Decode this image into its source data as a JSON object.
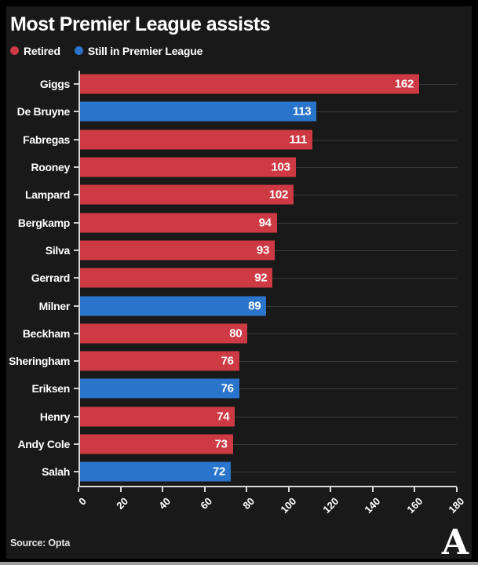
{
  "title": "Most Premier League assists",
  "legend": [
    {
      "label": "Retired",
      "color": "#ce3a44"
    },
    {
      "label": "Still in Premier League",
      "color": "#2a74cc"
    }
  ],
  "source": "Source: Opta",
  "logo_glyph": "A",
  "colors": {
    "frame": "#000000",
    "background": "#191919",
    "bar_retired": "#ce3a44",
    "bar_active": "#2a74cc",
    "grid": "#3b3b3b",
    "axis": "#d8d8d8",
    "text": "#ffffff",
    "bottom_strip": "#9e9e9e"
  },
  "chart_data": {
    "type": "bar",
    "orientation": "horizontal",
    "title": "Most Premier League assists",
    "xlabel": "",
    "ylabel": "",
    "xlim": [
      0,
      180
    ],
    "xticks": [
      0,
      20,
      40,
      60,
      80,
      100,
      120,
      140,
      160,
      180
    ],
    "grid": true,
    "legend_position": "top-left",
    "legend_entries": [
      "Retired",
      "Still in Premier League"
    ],
    "bars": [
      {
        "label": "Giggs",
        "value": 162,
        "group": "Retired"
      },
      {
        "label": "De Bruyne",
        "value": 113,
        "group": "Still in Premier League"
      },
      {
        "label": "Fabregas",
        "value": 111,
        "group": "Retired"
      },
      {
        "label": "Rooney",
        "value": 103,
        "group": "Retired"
      },
      {
        "label": "Lampard",
        "value": 102,
        "group": "Retired"
      },
      {
        "label": "Bergkamp",
        "value": 94,
        "group": "Retired"
      },
      {
        "label": "Silva",
        "value": 93,
        "group": "Retired"
      },
      {
        "label": "Gerrard",
        "value": 92,
        "group": "Retired"
      },
      {
        "label": "Milner",
        "value": 89,
        "group": "Still in Premier League"
      },
      {
        "label": "Beckham",
        "value": 80,
        "group": "Retired"
      },
      {
        "label": "Sheringham",
        "value": 76,
        "group": "Retired"
      },
      {
        "label": "Eriksen",
        "value": 76,
        "group": "Still in Premier League"
      },
      {
        "label": "Henry",
        "value": 74,
        "group": "Retired"
      },
      {
        "label": "Andy Cole",
        "value": 73,
        "group": "Retired"
      },
      {
        "label": "Salah",
        "value": 72,
        "group": "Still in Premier League"
      }
    ]
  }
}
